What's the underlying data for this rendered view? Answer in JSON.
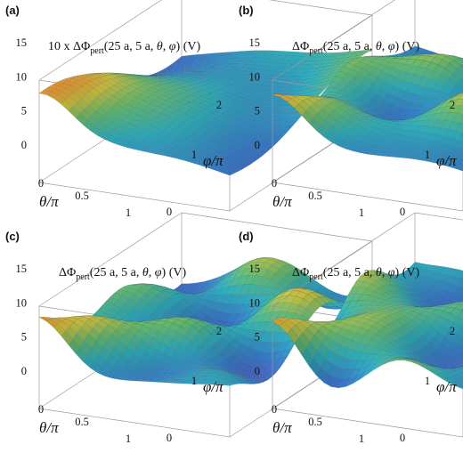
{
  "chart_data": [
    {
      "type": "surface",
      "panel_label": "(a)",
      "title": {
        "prefix": "10 x ΔΦ",
        "sub": "pert",
        "args": "(25 a, 5 a, ",
        "theta": "θ",
        "sep": ", ",
        "phi": "φ",
        "tail": ") (V)"
      },
      "x_axis": {
        "label_var": "θ",
        "label_den": "/π",
        "ticks": [
          "0",
          "0.5",
          "1"
        ],
        "range": [
          0,
          1
        ]
      },
      "y_axis": {
        "label_var": "φ",
        "label_den": "/π",
        "ticks": [
          "0",
          "1",
          "2"
        ],
        "range": [
          0,
          2
        ]
      },
      "z_axis": {
        "ticks": [
          "0",
          "5",
          "10",
          "15"
        ],
        "range": [
          0,
          15
        ]
      },
      "surface": {
        "modes": [
          [
            1,
            1,
            0.9,
            0.0
          ],
          [
            2,
            1,
            0.5,
            1.2
          ],
          [
            1,
            2,
            0.4,
            2.0
          ]
        ],
        "base": 7.5,
        "amp": 5.5
      }
    },
    {
      "type": "surface",
      "panel_label": "(b)",
      "title": {
        "prefix": "ΔΦ",
        "sub": "pert",
        "args": "(25 a, 5 a, ",
        "theta": "θ",
        "sep": ", ",
        "phi": "φ",
        "tail": ") (V)"
      },
      "x_axis": {
        "label_var": "θ",
        "label_den": "/π",
        "ticks": [
          "0",
          "0.5",
          "1"
        ],
        "range": [
          0,
          1
        ]
      },
      "y_axis": {
        "label_var": "φ",
        "label_den": "/π",
        "ticks": [
          "0",
          "1",
          "2"
        ],
        "range": [
          0,
          2
        ]
      },
      "z_axis": {
        "ticks": [
          "0",
          "5",
          "10",
          "15"
        ],
        "range": [
          0,
          15
        ]
      },
      "surface": {
        "modes": [
          [
            1,
            3,
            0.8,
            0.3
          ],
          [
            2,
            4,
            0.6,
            1.1
          ],
          [
            3,
            2,
            0.4,
            2.2
          ]
        ],
        "base": 7.5,
        "amp": 5.5
      }
    },
    {
      "type": "surface",
      "panel_label": "(c)",
      "title": {
        "prefix": "ΔΦ",
        "sub": "pert",
        "args": "(25 a, 5 a, ",
        "theta": "θ",
        "sep": ", ",
        "phi": "φ",
        "tail": ") (V)"
      },
      "x_axis": {
        "label_var": "θ",
        "label_den": "/π",
        "ticks": [
          "0",
          "0.5",
          "1"
        ],
        "range": [
          0,
          1
        ]
      },
      "y_axis": {
        "label_var": "φ",
        "label_den": "/π",
        "ticks": [
          "0",
          "1",
          "2"
        ],
        "range": [
          0,
          2
        ]
      },
      "z_axis": {
        "ticks": [
          "0",
          "5",
          "10",
          "15"
        ],
        "range": [
          0,
          15
        ]
      },
      "surface": {
        "modes": [
          [
            2,
            3,
            0.8,
            0.6
          ],
          [
            3,
            4,
            0.5,
            1.5
          ],
          [
            1,
            1,
            0.6,
            0.2
          ]
        ],
        "base": 7.5,
        "amp": 5.5
      }
    },
    {
      "type": "surface",
      "panel_label": "(d)",
      "title": {
        "prefix": "ΔΦ",
        "sub": "pert",
        "args": "(25 a, 5 a, ",
        "theta": "θ",
        "sep": ", ",
        "phi": "φ",
        "tail": ") (V)"
      },
      "x_axis": {
        "label_var": "θ",
        "label_den": "/π",
        "ticks": [
          "0",
          "0.5",
          "1"
        ],
        "range": [
          0,
          1
        ]
      },
      "y_axis": {
        "label_var": "φ",
        "label_den": "/π",
        "ticks": [
          "0",
          "1",
          "2"
        ],
        "range": [
          0,
          2
        ]
      },
      "z_axis": {
        "ticks": [
          "0",
          "5",
          "10",
          "15"
        ],
        "range": [
          0,
          15
        ]
      },
      "surface": {
        "modes": [
          [
            2,
            2,
            0.8,
            1.0
          ],
          [
            3,
            3,
            0.5,
            0.4
          ],
          [
            1,
            4,
            0.4,
            2.4
          ]
        ],
        "base": 7.5,
        "amp": 5.5
      }
    }
  ]
}
